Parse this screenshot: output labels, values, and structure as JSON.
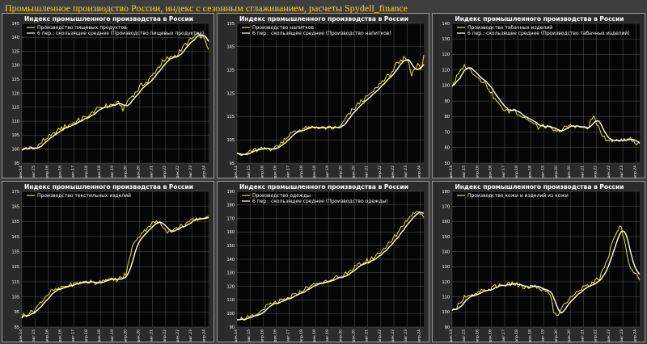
{
  "page": {
    "title": "Промышленное производство России, индекс с сезонным сглаживанием, расчеты Spydell_finance"
  },
  "colors": {
    "raw_series": "#f0ea00",
    "moving_average": "#ffffff",
    "plot_background": "#050505",
    "grid": "#5a5a5a"
  },
  "chart_data": [
    {
      "type": "line",
      "title": "Индекс промышленного производства в России",
      "legend": [
        "Производство пищевых продуктов",
        "6 пер.: скользящее среднее (Производство пищевых продуктов)"
      ],
      "legend_position": "top-left",
      "grid": true,
      "ylim": [
        95,
        145
      ],
      "yticks": [
        95,
        100,
        105,
        110,
        115,
        120,
        125,
        130,
        135,
        140,
        145
      ],
      "xticks": [
        "дек.14",
        "авг.15",
        "апр.16",
        "дек.16",
        "авг.17",
        "апр.18",
        "дек.18",
        "авг.19",
        "апр.20",
        "дек.20",
        "авг.21",
        "апр.22",
        "дек.22",
        "авг.23",
        "апр.24"
      ],
      "anchors": [
        [
          0,
          100
        ],
        [
          4,
          100.5
        ],
        [
          8,
          100
        ],
        [
          12,
          102
        ],
        [
          16,
          104
        ],
        [
          20,
          105
        ],
        [
          24,
          107
        ],
        [
          28,
          108
        ],
        [
          32,
          109
        ],
        [
          36,
          110
        ],
        [
          40,
          111
        ],
        [
          44,
          112
        ],
        [
          48,
          114
        ],
        [
          52,
          115
        ],
        [
          56,
          115.5
        ],
        [
          60,
          116
        ],
        [
          64,
          116.5
        ],
        [
          66,
          114
        ],
        [
          70,
          118
        ],
        [
          74,
          120
        ],
        [
          78,
          123
        ],
        [
          82,
          124
        ],
        [
          86,
          127
        ],
        [
          90,
          130
        ],
        [
          94,
          132
        ],
        [
          98,
          133
        ],
        [
          102,
          134
        ],
        [
          106,
          137
        ],
        [
          110,
          139
        ],
        [
          114,
          141
        ],
        [
          118,
          140
        ],
        [
          120,
          139
        ],
        [
          121,
          137
        ],
        [
          122,
          135
        ]
      ]
    },
    {
      "type": "line",
      "title": "Индекс промышленного производства в России",
      "legend": [
        "Производство напитков",
        "6 пер.: скользящее среднее (Производство напитков)"
      ],
      "legend_position": "top-left",
      "grid": true,
      "ylim": [
        95,
        155
      ],
      "yticks": [
        95,
        105,
        115,
        125,
        135,
        145,
        155
      ],
      "xticks": [
        "дек.14",
        "авг.15",
        "апр.16",
        "дек.16",
        "авг.17",
        "апр.18",
        "дек.18",
        "авг.19",
        "апр.20",
        "дек.20",
        "авг.21",
        "апр.22",
        "дек.22",
        "авг.23",
        "апр.24"
      ],
      "anchors": [
        [
          0,
          100
        ],
        [
          4,
          98
        ],
        [
          8,
          100
        ],
        [
          12,
          100.5
        ],
        [
          16,
          101
        ],
        [
          20,
          101
        ],
        [
          24,
          101.5
        ],
        [
          28,
          103
        ],
        [
          32,
          106
        ],
        [
          36,
          108
        ],
        [
          40,
          109
        ],
        [
          44,
          110
        ],
        [
          48,
          110
        ],
        [
          52,
          110.5
        ],
        [
          56,
          110
        ],
        [
          60,
          110
        ],
        [
          64,
          110
        ],
        [
          68,
          111
        ],
        [
          72,
          115
        ],
        [
          76,
          118
        ],
        [
          80,
          121
        ],
        [
          84,
          123
        ],
        [
          88,
          125
        ],
        [
          92,
          128
        ],
        [
          96,
          131
        ],
        [
          100,
          133
        ],
        [
          104,
          137
        ],
        [
          108,
          139
        ],
        [
          110,
          141
        ],
        [
          112,
          138
        ],
        [
          114,
          133
        ],
        [
          116,
          136
        ],
        [
          118,
          138
        ],
        [
          120,
          135
        ],
        [
          121,
          137
        ],
        [
          122,
          141
        ]
      ]
    },
    {
      "type": "line",
      "title": "Индекс промышленного производства в России",
      "legend": [
        "Производство табачных изделий",
        "6 пер.: скользящее среднее (Производство табачных изделий)"
      ],
      "legend_position": "top-left",
      "grid": true,
      "ylim": [
        50,
        140
      ],
      "yticks": [
        50,
        60,
        70,
        80,
        90,
        100,
        110,
        120,
        130,
        140
      ],
      "xticks": [
        "дек.14",
        "авг.15",
        "апр.16",
        "дек.16",
        "авг.17",
        "апр.18",
        "дек.18",
        "авг.19",
        "апр.20",
        "дек.20",
        "авг.21",
        "апр.22",
        "дек.22",
        "авг.23",
        "апр.24"
      ],
      "anchors": [
        [
          0,
          100
        ],
        [
          4,
          107
        ],
        [
          8,
          113
        ],
        [
          12,
          110
        ],
        [
          16,
          106
        ],
        [
          20,
          103
        ],
        [
          24,
          98
        ],
        [
          28,
          91
        ],
        [
          32,
          86
        ],
        [
          36,
          83
        ],
        [
          40,
          85
        ],
        [
          44,
          81
        ],
        [
          48,
          79
        ],
        [
          52,
          76
        ],
        [
          56,
          73
        ],
        [
          60,
          74
        ],
        [
          64,
          72
        ],
        [
          68,
          70
        ],
        [
          72,
          72
        ],
        [
          76,
          74
        ],
        [
          80,
          74
        ],
        [
          84,
          73
        ],
        [
          88,
          72
        ],
        [
          90,
          77
        ],
        [
          92,
          80
        ],
        [
          94,
          76
        ],
        [
          96,
          70
        ],
        [
          100,
          66
        ],
        [
          104,
          64
        ],
        [
          108,
          65
        ],
        [
          112,
          65
        ],
        [
          116,
          66
        ],
        [
          119,
          63
        ],
        [
          122,
          62
        ]
      ]
    },
    {
      "type": "line",
      "title": "Индекс промышленного производства в России",
      "legend": [
        "Производство текстильных изделий"
      ],
      "legend_position": "top-left",
      "grid": true,
      "ylim": [
        85,
        175
      ],
      "yticks": [
        85,
        95,
        105,
        115,
        125,
        135,
        145,
        155,
        165,
        175
      ],
      "xticks": [
        "дек.14",
        "авг.15",
        "апр.16",
        "дек.16",
        "авг.17",
        "апр.18",
        "дек.18",
        "авг.19",
        "апр.20",
        "дек.20",
        "авг.21",
        "апр.22",
        "дек.22",
        "авг.23",
        "апр.24"
      ],
      "anchors": [
        [
          0,
          92
        ],
        [
          4,
          94
        ],
        [
          8,
          96
        ],
        [
          12,
          101
        ],
        [
          16,
          106
        ],
        [
          20,
          109
        ],
        [
          24,
          110
        ],
        [
          28,
          112
        ],
        [
          32,
          113
        ],
        [
          36,
          114
        ],
        [
          40,
          115
        ],
        [
          44,
          115
        ],
        [
          48,
          114
        ],
        [
          52,
          116
        ],
        [
          56,
          117
        ],
        [
          60,
          116
        ],
        [
          64,
          117
        ],
        [
          68,
          120
        ],
        [
          72,
          138
        ],
        [
          76,
          145
        ],
        [
          80,
          149
        ],
        [
          84,
          153
        ],
        [
          88,
          155
        ],
        [
          92,
          152
        ],
        [
          96,
          148
        ],
        [
          100,
          150
        ],
        [
          104,
          152
        ],
        [
          108,
          154
        ],
        [
          112,
          156
        ],
        [
          116,
          157
        ],
        [
          120,
          158
        ],
        [
          122,
          157
        ]
      ]
    },
    {
      "type": "line",
      "title": "Индекс промышленного производства в России",
      "legend": [
        "Производство одежды",
        "6 пер.: скользящее среднее (Производство одежды)"
      ],
      "legend_position": "top-left",
      "grid": true,
      "ylim": [
        90,
        190
      ],
      "yticks": [
        90,
        100,
        110,
        120,
        130,
        140,
        150,
        160,
        170,
        180,
        190
      ],
      "xticks": [
        "дек.14",
        "авг.15",
        "апр.16",
        "дек.16",
        "авг.17",
        "апр.18",
        "дек.18",
        "авг.19",
        "апр.20",
        "дек.20",
        "авг.21",
        "апр.22",
        "дек.22",
        "авг.23",
        "апр.24"
      ],
      "anchors": [
        [
          0,
          97
        ],
        [
          4,
          96
        ],
        [
          8,
          97
        ],
        [
          12,
          98
        ],
        [
          16,
          102
        ],
        [
          20,
          106
        ],
        [
          24,
          107
        ],
        [
          28,
          109
        ],
        [
          32,
          110
        ],
        [
          36,
          113
        ],
        [
          40,
          115
        ],
        [
          44,
          118
        ],
        [
          48,
          120
        ],
        [
          52,
          122
        ],
        [
          56,
          123
        ],
        [
          60,
          125
        ],
        [
          64,
          127
        ],
        [
          68,
          125
        ],
        [
          72,
          131
        ],
        [
          76,
          133
        ],
        [
          80,
          136
        ],
        [
          84,
          138
        ],
        [
          88,
          140
        ],
        [
          92,
          144
        ],
        [
          96,
          148
        ],
        [
          100,
          152
        ],
        [
          104,
          158
        ],
        [
          108,
          165
        ],
        [
          112,
          170
        ],
        [
          116,
          175
        ],
        [
          119,
          176
        ],
        [
          122,
          171
        ]
      ]
    },
    {
      "type": "line",
      "title": "Индекс промышленного производства в России",
      "legend": [
        "Производство кожи и изделий из кожи"
      ],
      "legend_position": "top-left",
      "grid": true,
      "ylim": [
        90,
        180
      ],
      "yticks": [
        90,
        100,
        110,
        120,
        130,
        140,
        150,
        160,
        170,
        180
      ],
      "xticks": [
        "дек.14",
        "авг.15",
        "апр.16",
        "дек.16",
        "авг.17",
        "апр.18",
        "дек.18",
        "авг.19",
        "апр.20",
        "дек.20",
        "авг.21",
        "апр.22",
        "дек.22",
        "авг.23",
        "апр.24"
      ],
      "anchors": [
        [
          0,
          100
        ],
        [
          4,
          105
        ],
        [
          8,
          110
        ],
        [
          12,
          110
        ],
        [
          16,
          112
        ],
        [
          20,
          114
        ],
        [
          24,
          115
        ],
        [
          28,
          117
        ],
        [
          32,
          118
        ],
        [
          36,
          118
        ],
        [
          40,
          119
        ],
        [
          44,
          117
        ],
        [
          48,
          116
        ],
        [
          52,
          117
        ],
        [
          56,
          116
        ],
        [
          60,
          114
        ],
        [
          64,
          112
        ],
        [
          66,
          100
        ],
        [
          68,
          97
        ],
        [
          72,
          104
        ],
        [
          76,
          108
        ],
        [
          80,
          113
        ],
        [
          84,
          116
        ],
        [
          88,
          117
        ],
        [
          92,
          119
        ],
        [
          96,
          123
        ],
        [
          100,
          132
        ],
        [
          104,
          145
        ],
        [
          108,
          155
        ],
        [
          110,
          157
        ],
        [
          112,
          147
        ],
        [
          114,
          137
        ],
        [
          116,
          130
        ],
        [
          118,
          127
        ],
        [
          120,
          124
        ],
        [
          122,
          121
        ]
      ]
    }
  ]
}
